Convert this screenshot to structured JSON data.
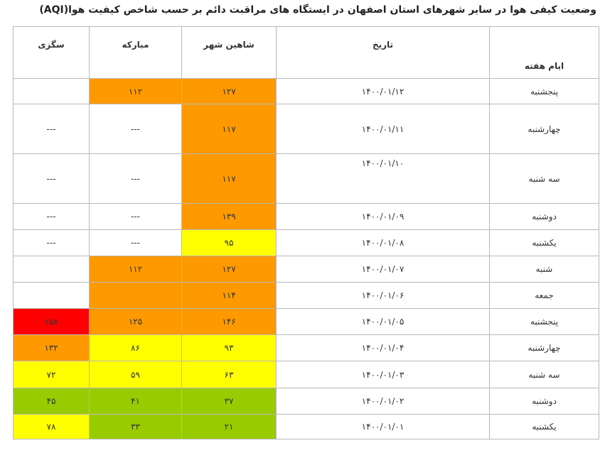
{
  "header": {
    "title": "وضعیت کیفی هوا در سایر شهرهای استان اصفهان در ایستگاه های مراقبت دائم بر حسب شاخص کیفیت هوا(AQI)"
  },
  "table": {
    "columns": [
      "ایام هفته",
      "تاریخ",
      "شاهین شهر",
      "مبارکه",
      "سگزی"
    ],
    "rows": [
      [
        "پنجشنبه",
        "۱۴۰۰/۰۱/۱۲",
        "۱۲۷",
        "۱۱۲",
        null
      ],
      [
        "چهارشنبه",
        "۱۴۰۰/۰۱/۱۱",
        "۱۱۷",
        "---",
        "---"
      ],
      [
        "سه شنبه",
        "۱۴۰۰/۰۱/۱۰",
        "۱۱۷",
        "---",
        "---"
      ],
      [
        "دوشنبه",
        "۱۴۰۰/۰۱/۰۹",
        "۱۳۹",
        "---",
        "---"
      ],
      [
        "یکشنبه",
        "۱۴۰۰/۰۱/۰۸",
        "۹۵",
        "---",
        "---"
      ],
      [
        "شنبه",
        "۱۴۰۰/۰۱/۰۷",
        "۱۲۷",
        "۱۱۲",
        null
      ],
      [
        "جمعه",
        "۱۴۰۰/۰۱/۰۶",
        "۱۱۴",
        null,
        null
      ],
      [
        "پنجشنبه",
        "۱۴۰۰/۰۱/۰۵",
        "۱۴۶",
        "۱۲۵",
        "۱۵۸"
      ],
      [
        "چهارشنبه",
        "۱۴۰۰/۰۱/۰۴",
        "۹۳",
        "۸۶",
        "۱۳۲"
      ],
      [
        "سه شنبه",
        "۱۴۰۰/۰۱/۰۳",
        "۶۳",
        "۵۹",
        "۷۲"
      ],
      [
        "دوشنبه",
        "۱۴۰۰/۰۱/۰۲",
        "۳۷",
        "۴۱",
        "۴۵"
      ],
      [
        "یکشنبه",
        "۱۴۰۰/۰۱/۰۱",
        "۲۱",
        "۳۳",
        "۷۸"
      ]
    ]
  }
}
